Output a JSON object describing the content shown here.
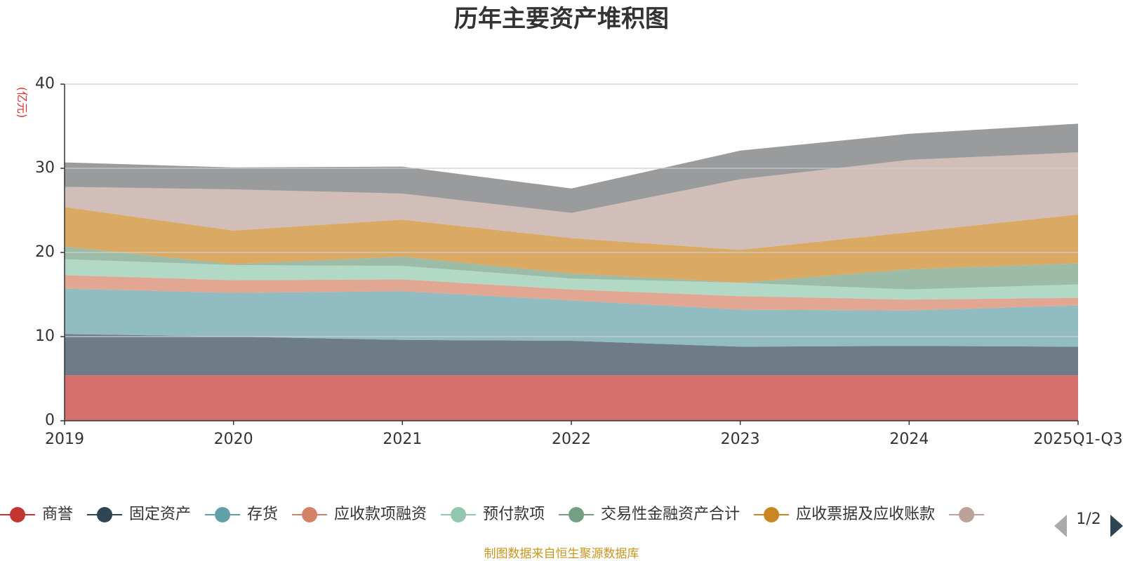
{
  "chart_data": {
    "type": "area",
    "stacked": true,
    "title": "历年主要资产堆积图",
    "unit_label": "(亿元)",
    "categories": [
      "2019",
      "2020",
      "2021",
      "2022",
      "2023",
      "2024",
      "2025Q1-Q3"
    ],
    "yticks": [
      0,
      10,
      20,
      30,
      40
    ],
    "ylim": [
      0,
      40
    ],
    "grid": true,
    "series": [
      {
        "name": "商誉",
        "color": "#c23531",
        "values": [
          5.4,
          5.4,
          5.4,
          5.4,
          5.4,
          5.4,
          5.4
        ]
      },
      {
        "name": "固定资产",
        "color": "#2f4554",
        "values": [
          4.9,
          4.6,
          4.2,
          4.1,
          3.4,
          3.5,
          3.4
        ]
      },
      {
        "name": "存货",
        "color": "#61a0a8",
        "values": [
          5.4,
          5.2,
          5.8,
          4.8,
          4.4,
          4.2,
          4.9
        ]
      },
      {
        "name": "应收款项融资",
        "color": "#d48265",
        "values": [
          1.6,
          1.5,
          1.4,
          1.3,
          1.6,
          1.3,
          0.9
        ]
      },
      {
        "name": "预付款项",
        "color": "#91c7ae",
        "values": [
          1.9,
          1.8,
          1.6,
          1.3,
          1.6,
          1.2,
          1.6
        ]
      },
      {
        "name": "交易性金融资产合计",
        "color": "#749f83",
        "values": [
          1.5,
          0.1,
          1.1,
          0.6,
          0.0,
          2.4,
          2.5
        ]
      },
      {
        "name": "应收票据及应收账款",
        "color": "#ca8622",
        "values": [
          4.7,
          4.0,
          4.4,
          4.2,
          3.9,
          4.4,
          5.8
        ]
      },
      {
        "name": "",
        "color": "#bda29a",
        "values": [
          2.4,
          4.9,
          3.1,
          3.0,
          8.4,
          8.6,
          7.4
        ]
      },
      {
        "name": "",
        "color": "#6e7074",
        "values": [
          2.9,
          2.6,
          3.2,
          2.9,
          3.4,
          3.1,
          3.4
        ]
      }
    ],
    "legend": {
      "position": "bottom",
      "page": "1/2",
      "visible_entries": [
        "商誉",
        "固定资产",
        "存货",
        "应收款项融资",
        "预付款项",
        "交易性金融资产合计",
        "应收票据及应收账款"
      ]
    }
  },
  "footer": "制图数据来自恒生聚源数据库"
}
